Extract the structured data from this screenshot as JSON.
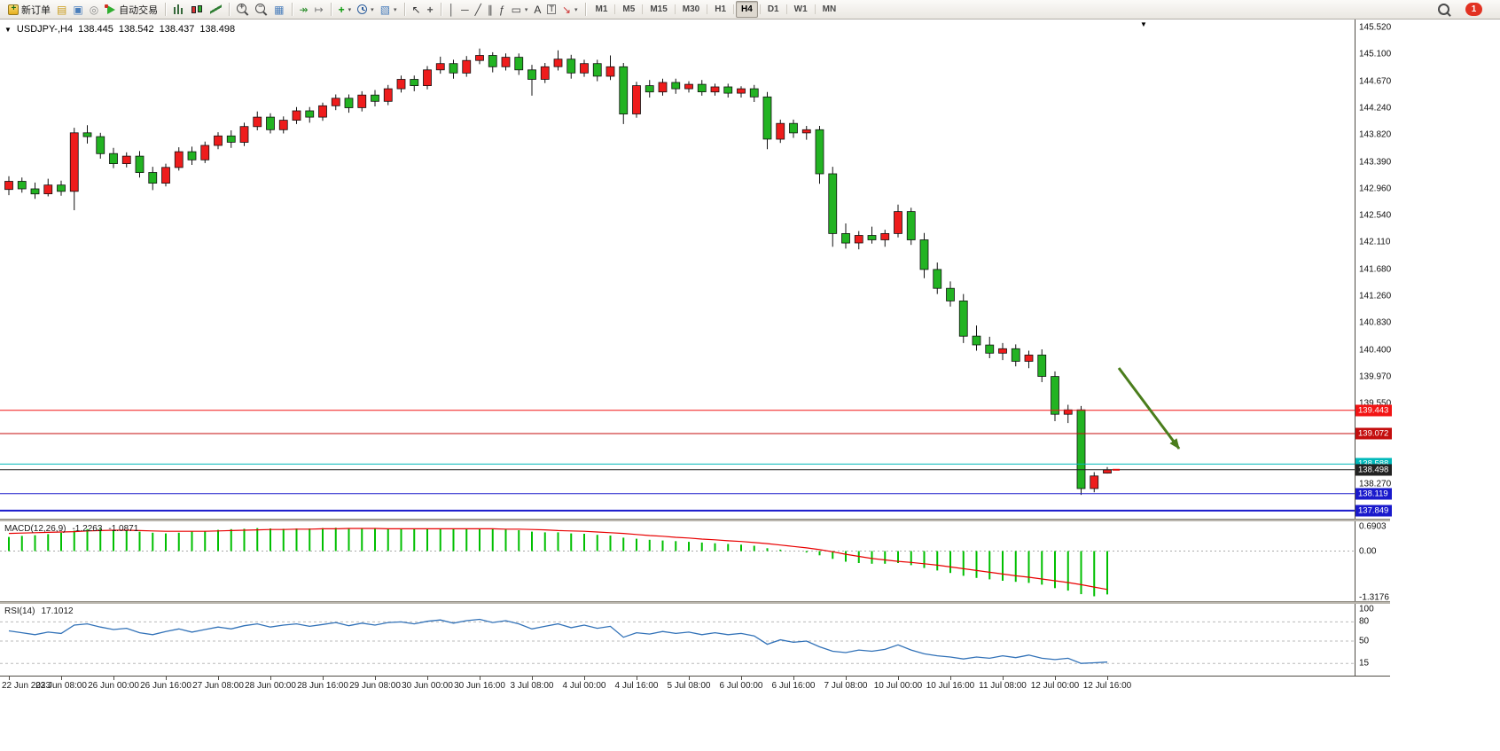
{
  "toolbar": {
    "notification_count": "1",
    "items": [
      {
        "kind": "labeled",
        "name": "new-order-button",
        "icon": "new-order-icon",
        "css": "ic-neworder",
        "label": "新订单"
      },
      {
        "kind": "icon",
        "name": "profiles-button",
        "icon": "profiles-icon",
        "glyph": "▤",
        "color": "#c99a18"
      },
      {
        "kind": "icon",
        "name": "new-window-button",
        "icon": "new-window-icon",
        "glyph": "▣",
        "color": "#4a7ebb"
      },
      {
        "kind": "icon",
        "name": "refresh-button",
        "icon": "refresh-icon",
        "glyph": "◎",
        "color": "#8a8a8a"
      },
      {
        "kind": "labeled",
        "name": "auto-trading-button",
        "icon": "auto-trading-icon",
        "css": "ic-autotrade",
        "label": "自动交易"
      },
      {
        "kind": "sep"
      },
      {
        "kind": "icon",
        "name": "bars-mode-button",
        "icon": "bars-chart-icon",
        "css": "ic-bars"
      },
      {
        "kind": "icon",
        "name": "candles-mode-button",
        "icon": "candles-chart-icon",
        "css": "ic-candles"
      },
      {
        "kind": "icon",
        "name": "line-mode-button",
        "icon": "line-chart-icon",
        "css": "ic-linechart"
      },
      {
        "kind": "sep"
      },
      {
        "kind": "icon",
        "name": "zoom-in-button",
        "icon": "zoom-in-icon",
        "css": "ic-zoom plus"
      },
      {
        "kind": "icon",
        "name": "zoom-out-button",
        "icon": "zoom-out-icon",
        "css": "ic-zoom minus"
      },
      {
        "kind": "icon",
        "name": "tile-windows-button",
        "icon": "tile-windows-icon",
        "glyph": "▦",
        "color": "#4a7ebb"
      },
      {
        "kind": "sep"
      },
      {
        "kind": "icon",
        "name": "auto-scroll-button",
        "icon": "auto-scroll-icon",
        "glyph": "↠",
        "color": "#2f8f2f"
      },
      {
        "kind": "icon",
        "name": "chart-shift-button",
        "icon": "chart-shift-icon",
        "glyph": "↦",
        "color": "#777777"
      },
      {
        "kind": "sep"
      },
      {
        "kind": "icon",
        "name": "indicators-button",
        "icon": "indicators-icon",
        "glyph": "+",
        "color": "#0a9a0a",
        "bold": true,
        "caret": true
      },
      {
        "kind": "icon",
        "name": "periods-button",
        "icon": "clock-icon",
        "css": "ic-clock",
        "caret": true
      },
      {
        "kind": "icon",
        "name": "templates-button",
        "icon": "template-icon",
        "glyph": "▧",
        "color": "#4a7ebb",
        "caret": true
      },
      {
        "kind": "sep"
      },
      {
        "kind": "icon",
        "name": "cursor-button",
        "icon": "cursor-icon",
        "glyph": "↖",
        "color": "#333333"
      },
      {
        "kind": "icon",
        "name": "crosshair-button",
        "icon": "crosshair-icon",
        "glyph": "+",
        "color": "#555555",
        "bold": true
      },
      {
        "kind": "sep"
      },
      {
        "kind": "icon",
        "name": "vertical-line-button",
        "icon": "vertical-line-icon",
        "glyph": "│",
        "color": "#444444"
      },
      {
        "kind": "icon",
        "name": "horizontal-line-button",
        "icon": "horizontal-line-icon",
        "glyph": "─",
        "color": "#444444"
      },
      {
        "kind": "icon",
        "name": "trendline-button",
        "icon": "trendline-icon",
        "glyph": "╱",
        "color": "#444444"
      },
      {
        "kind": "icon",
        "name": "channel-button",
        "icon": "channel-icon",
        "glyph": "∥",
        "color": "#444444"
      },
      {
        "kind": "icon",
        "name": "fibonacci-button",
        "icon": "fibonacci-icon",
        "glyph": "ƒ",
        "color": "#444444"
      },
      {
        "kind": "icon",
        "name": "shapes-button",
        "icon": "shapes-icon",
        "glyph": "▭",
        "color": "#444444",
        "caret": true
      },
      {
        "kind": "icon",
        "name": "text-button",
        "icon": "text-icon",
        "glyph": "A",
        "color": "#333333"
      },
      {
        "kind": "icon",
        "name": "text-label-button",
        "icon": "text-label-icon",
        "glyph": "T",
        "color": "#333333",
        "boxed": true
      },
      {
        "kind": "icon",
        "name": "arrows-button",
        "icon": "arrow-tool-icon",
        "glyph": "↘",
        "color": "#cc3333",
        "caret": true
      },
      {
        "kind": "sep"
      },
      {
        "kind": "tf",
        "name": "timeframe-m1-button",
        "label": "M1"
      },
      {
        "kind": "tf",
        "name": "timeframe-m5-button",
        "label": "M5"
      },
      {
        "kind": "tf",
        "name": "timeframe-m15-button",
        "label": "M15"
      },
      {
        "kind": "tf",
        "name": "timeframe-m30-button",
        "label": "M30"
      },
      {
        "kind": "tf",
        "name": "timeframe-h1-button",
        "label": "H1"
      },
      {
        "kind": "tf",
        "name": "timeframe-h4-button",
        "label": "H4",
        "active": true
      },
      {
        "kind": "tf",
        "name": "timeframe-d1-button",
        "label": "D1"
      },
      {
        "kind": "tf",
        "name": "timeframe-w1-button",
        "label": "W1"
      },
      {
        "kind": "tf",
        "name": "timeframe-mn-button",
        "label": "MN"
      }
    ]
  },
  "chart": {
    "header": {
      "collapse_icon": "▼",
      "symbol": "USDJPY-,H4",
      "open": "138.445",
      "high": "138.542",
      "low": "138.437",
      "close": "138.498"
    },
    "anchor_glyph": "▼"
  },
  "chart_data": {
    "type": "candlestick",
    "symbol": "USDJPY",
    "timeframe": "H4",
    "current_price": 138.498,
    "colors": {
      "up": "#ee1c1c",
      "down": "#22b322"
    },
    "candles": [
      [
        142.95,
        143.16,
        142.86,
        143.08
      ],
      [
        143.08,
        143.14,
        142.9,
        142.96
      ],
      [
        142.96,
        143.06,
        142.8,
        142.88
      ],
      [
        142.88,
        143.12,
        142.84,
        143.02
      ],
      [
        143.02,
        143.09,
        142.85,
        142.92
      ],
      [
        142.92,
        143.93,
        142.62,
        143.85
      ],
      [
        143.85,
        143.97,
        143.68,
        143.79
      ],
      [
        143.79,
        143.85,
        143.44,
        143.52
      ],
      [
        143.52,
        143.61,
        143.29,
        143.36
      ],
      [
        143.36,
        143.54,
        143.3,
        143.48
      ],
      [
        143.48,
        143.56,
        143.14,
        143.22
      ],
      [
        143.22,
        143.31,
        142.94,
        143.05
      ],
      [
        143.05,
        143.36,
        143.0,
        143.3
      ],
      [
        143.3,
        143.62,
        143.25,
        143.55
      ],
      [
        143.55,
        143.63,
        143.34,
        143.42
      ],
      [
        143.42,
        143.71,
        143.37,
        143.65
      ],
      [
        143.65,
        143.86,
        143.59,
        143.8
      ],
      [
        143.8,
        143.89,
        143.61,
        143.7
      ],
      [
        143.7,
        144.01,
        143.64,
        143.95
      ],
      [
        143.95,
        144.19,
        143.89,
        144.1
      ],
      [
        144.1,
        144.16,
        143.84,
        143.9
      ],
      [
        143.9,
        144.11,
        143.84,
        144.05
      ],
      [
        144.05,
        144.26,
        143.99,
        144.2
      ],
      [
        144.2,
        144.26,
        144.01,
        144.1
      ],
      [
        144.1,
        144.33,
        144.04,
        144.28
      ],
      [
        144.28,
        144.46,
        144.21,
        144.4
      ],
      [
        144.4,
        144.46,
        144.17,
        144.25
      ],
      [
        144.25,
        144.51,
        144.19,
        144.45
      ],
      [
        144.45,
        144.53,
        144.27,
        144.35
      ],
      [
        144.35,
        144.61,
        144.29,
        144.55
      ],
      [
        144.55,
        144.76,
        144.49,
        144.7
      ],
      [
        144.7,
        144.76,
        144.51,
        144.6
      ],
      [
        144.6,
        144.91,
        144.54,
        144.85
      ],
      [
        144.85,
        145.06,
        144.79,
        144.95
      ],
      [
        144.95,
        145.01,
        144.71,
        144.8
      ],
      [
        144.8,
        145.07,
        144.74,
        145.0
      ],
      [
        145.0,
        145.19,
        144.94,
        145.08
      ],
      [
        145.08,
        145.13,
        144.81,
        144.9
      ],
      [
        144.9,
        145.11,
        144.84,
        145.05
      ],
      [
        145.05,
        145.11,
        144.77,
        144.85
      ],
      [
        144.85,
        144.93,
        144.44,
        144.7
      ],
      [
        144.7,
        144.96,
        144.64,
        144.9
      ],
      [
        144.9,
        145.16,
        144.84,
        145.02
      ],
      [
        145.02,
        145.09,
        144.71,
        144.8
      ],
      [
        144.8,
        145.01,
        144.74,
        144.95
      ],
      [
        144.95,
        145.01,
        144.67,
        144.75
      ],
      [
        144.75,
        145.08,
        144.69,
        144.9
      ],
      [
        144.9,
        144.96,
        143.99,
        144.15
      ],
      [
        144.15,
        144.66,
        144.09,
        144.6
      ],
      [
        144.6,
        144.69,
        144.41,
        144.5
      ],
      [
        144.5,
        144.71,
        144.44,
        144.65
      ],
      [
        144.65,
        144.71,
        144.47,
        144.55
      ],
      [
        144.55,
        144.67,
        144.49,
        144.62
      ],
      [
        144.62,
        144.69,
        144.44,
        144.5
      ],
      [
        144.5,
        144.63,
        144.44,
        144.58
      ],
      [
        144.58,
        144.63,
        144.41,
        144.48
      ],
      [
        144.48,
        144.59,
        144.41,
        144.55
      ],
      [
        144.55,
        144.61,
        144.34,
        144.42
      ],
      [
        144.42,
        144.5,
        143.59,
        143.75
      ],
      [
        143.75,
        144.06,
        143.69,
        144.0
      ],
      [
        144.0,
        144.06,
        143.77,
        143.85
      ],
      [
        143.85,
        143.96,
        143.74,
        143.9
      ],
      [
        143.9,
        143.96,
        143.04,
        143.2
      ],
      [
        143.2,
        143.31,
        142.04,
        142.25
      ],
      [
        142.25,
        142.41,
        142.01,
        142.1
      ],
      [
        142.1,
        142.29,
        142.0,
        142.22
      ],
      [
        142.22,
        142.36,
        142.09,
        142.15
      ],
      [
        142.15,
        142.31,
        142.04,
        142.25
      ],
      [
        142.25,
        142.71,
        142.19,
        142.6
      ],
      [
        142.6,
        142.66,
        142.07,
        142.15
      ],
      [
        142.15,
        142.26,
        141.54,
        141.68
      ],
      [
        141.68,
        141.79,
        141.29,
        141.38
      ],
      [
        141.38,
        141.49,
        141.09,
        141.18
      ],
      [
        141.18,
        141.29,
        140.51,
        140.62
      ],
      [
        140.62,
        140.79,
        140.39,
        140.48
      ],
      [
        140.48,
        140.61,
        140.27,
        140.35
      ],
      [
        140.35,
        140.51,
        140.24,
        140.42
      ],
      [
        140.42,
        140.49,
        140.14,
        140.22
      ],
      [
        140.22,
        140.39,
        140.11,
        140.32
      ],
      [
        140.32,
        140.41,
        139.89,
        139.98
      ],
      [
        139.98,
        140.06,
        139.27,
        139.38
      ],
      [
        139.38,
        139.53,
        139.24,
        139.45
      ],
      [
        139.45,
        139.51,
        138.1,
        138.2
      ],
      [
        138.2,
        138.46,
        138.14,
        138.4
      ],
      [
        138.445,
        138.542,
        138.437,
        138.498
      ]
    ],
    "hlines": [
      {
        "price": 139.443,
        "label": "139.443",
        "color": "#f21515"
      },
      {
        "price": 139.072,
        "label": "139.072",
        "color": "#c40e0e"
      },
      {
        "price": 138.588,
        "label": "138.588",
        "color": "#00b8ba"
      },
      {
        "price": 138.498,
        "label": "138.498",
        "color": "#222222"
      },
      {
        "price": 138.119,
        "label": "138.119",
        "color": "#1a1acc"
      },
      {
        "price": 137.849,
        "label": "137.849",
        "color": "#1a1acc",
        "width": 2
      }
    ],
    "price_scale_labels": [
      "145.520",
      "145.100",
      "144.670",
      "144.240",
      "143.820",
      "143.390",
      "142.960",
      "142.540",
      "142.110",
      "141.680",
      "141.260",
      "140.830",
      "140.400",
      "139.970",
      "139.550",
      "138.270"
    ],
    "time_labels": [
      "22 Jun 2023",
      "23 Jun 08:00",
      "26 Jun 00:00",
      "26 Jun 16:00",
      "27 Jun 08:00",
      "28 Jun 00:00",
      "28 Jun 16:00",
      "29 Jun 08:00",
      "30 Jun 00:00",
      "30 Jun 16:00",
      "3 Jul 08:00",
      "4 Jul 00:00",
      "4 Jul 16:00",
      "5 Jul 08:00",
      "6 Jul 00:00",
      "6 Jul 16:00",
      "7 Jul 08:00",
      "10 Jul 00:00",
      "10 Jul 16:00",
      "11 Jul 08:00",
      "12 Jul 00:00",
      "12 Jul 16:00"
    ],
    "arrow_annotation": {
      "from": [
        1262,
        393
      ],
      "to": [
        1330,
        484
      ],
      "color": "#4a7d1c"
    },
    "indicators": [
      {
        "name": "MACD",
        "label": "MACD(12,26,9)",
        "value1": "-1.2263",
        "value2": "-1.0871",
        "scale": [
          "0.6903",
          "0.00",
          "-1.3176"
        ],
        "colors": {
          "histogram": "#00bf00",
          "signal": "#e80000"
        },
        "histogram": [
          0.4,
          0.43,
          0.45,
          0.48,
          0.52,
          0.58,
          0.62,
          0.63,
          0.6,
          0.58,
          0.55,
          0.52,
          0.5,
          0.52,
          0.55,
          0.57,
          0.6,
          0.62,
          0.63,
          0.65,
          0.64,
          0.63,
          0.64,
          0.64,
          0.65,
          0.66,
          0.65,
          0.64,
          0.63,
          0.63,
          0.64,
          0.63,
          0.63,
          0.64,
          0.62,
          0.63,
          0.64,
          0.62,
          0.61,
          0.59,
          0.55,
          0.53,
          0.53,
          0.5,
          0.49,
          0.46,
          0.44,
          0.38,
          0.35,
          0.32,
          0.3,
          0.28,
          0.26,
          0.24,
          0.22,
          0.2,
          0.18,
          0.15,
          0.08,
          0.04,
          0.0,
          -0.04,
          -0.12,
          -0.22,
          -0.3,
          -0.34,
          -0.36,
          -0.36,
          -0.34,
          -0.4,
          -0.48,
          -0.55,
          -0.62,
          -0.7,
          -0.76,
          -0.8,
          -0.84,
          -0.87,
          -0.9,
          -0.95,
          -1.05,
          -1.12,
          -1.22,
          -1.28,
          -1.2263
        ],
        "signal": [
          0.5,
          0.51,
          0.52,
          0.53,
          0.54,
          0.55,
          0.57,
          0.58,
          0.59,
          0.59,
          0.58,
          0.57,
          0.56,
          0.56,
          0.56,
          0.56,
          0.57,
          0.58,
          0.59,
          0.6,
          0.61,
          0.61,
          0.62,
          0.62,
          0.63,
          0.63,
          0.64,
          0.64,
          0.64,
          0.63,
          0.63,
          0.63,
          0.63,
          0.63,
          0.63,
          0.63,
          0.63,
          0.63,
          0.62,
          0.62,
          0.61,
          0.6,
          0.58,
          0.57,
          0.56,
          0.54,
          0.52,
          0.5,
          0.47,
          0.44,
          0.42,
          0.39,
          0.37,
          0.34,
          0.32,
          0.29,
          0.27,
          0.24,
          0.21,
          0.17,
          0.13,
          0.09,
          0.04,
          -0.02,
          -0.09,
          -0.15,
          -0.21,
          -0.25,
          -0.29,
          -0.32,
          -0.36,
          -0.4,
          -0.45,
          -0.5,
          -0.55,
          -0.6,
          -0.65,
          -0.7,
          -0.74,
          -0.79,
          -0.84,
          -0.89,
          -0.95,
          -1.02,
          -1.0871
        ]
      },
      {
        "name": "RSI",
        "label": "RSI(14)",
        "value": "17.1012",
        "scale": [
          "100",
          "80",
          "50",
          "15"
        ],
        "levels": [
          80,
          50,
          15
        ],
        "color": "#3272b8",
        "values": [
          66,
          63,
          60,
          64,
          62,
          75,
          77,
          72,
          68,
          70,
          63,
          60,
          65,
          69,
          64,
          68,
          72,
          69,
          74,
          77,
          72,
          75,
          77,
          73,
          76,
          79,
          74,
          78,
          75,
          79,
          80,
          77,
          81,
          83,
          78,
          82,
          84,
          79,
          82,
          77,
          69,
          73,
          77,
          71,
          75,
          70,
          73,
          56,
          63,
          61,
          65,
          62,
          64,
          60,
          63,
          60,
          62,
          58,
          45,
          52,
          48,
          50,
          41,
          34,
          32,
          36,
          34,
          37,
          44,
          36,
          30,
          27,
          25,
          22,
          25,
          23,
          27,
          24,
          28,
          23,
          21,
          23,
          15,
          16,
          17.1
        ]
      }
    ]
  }
}
